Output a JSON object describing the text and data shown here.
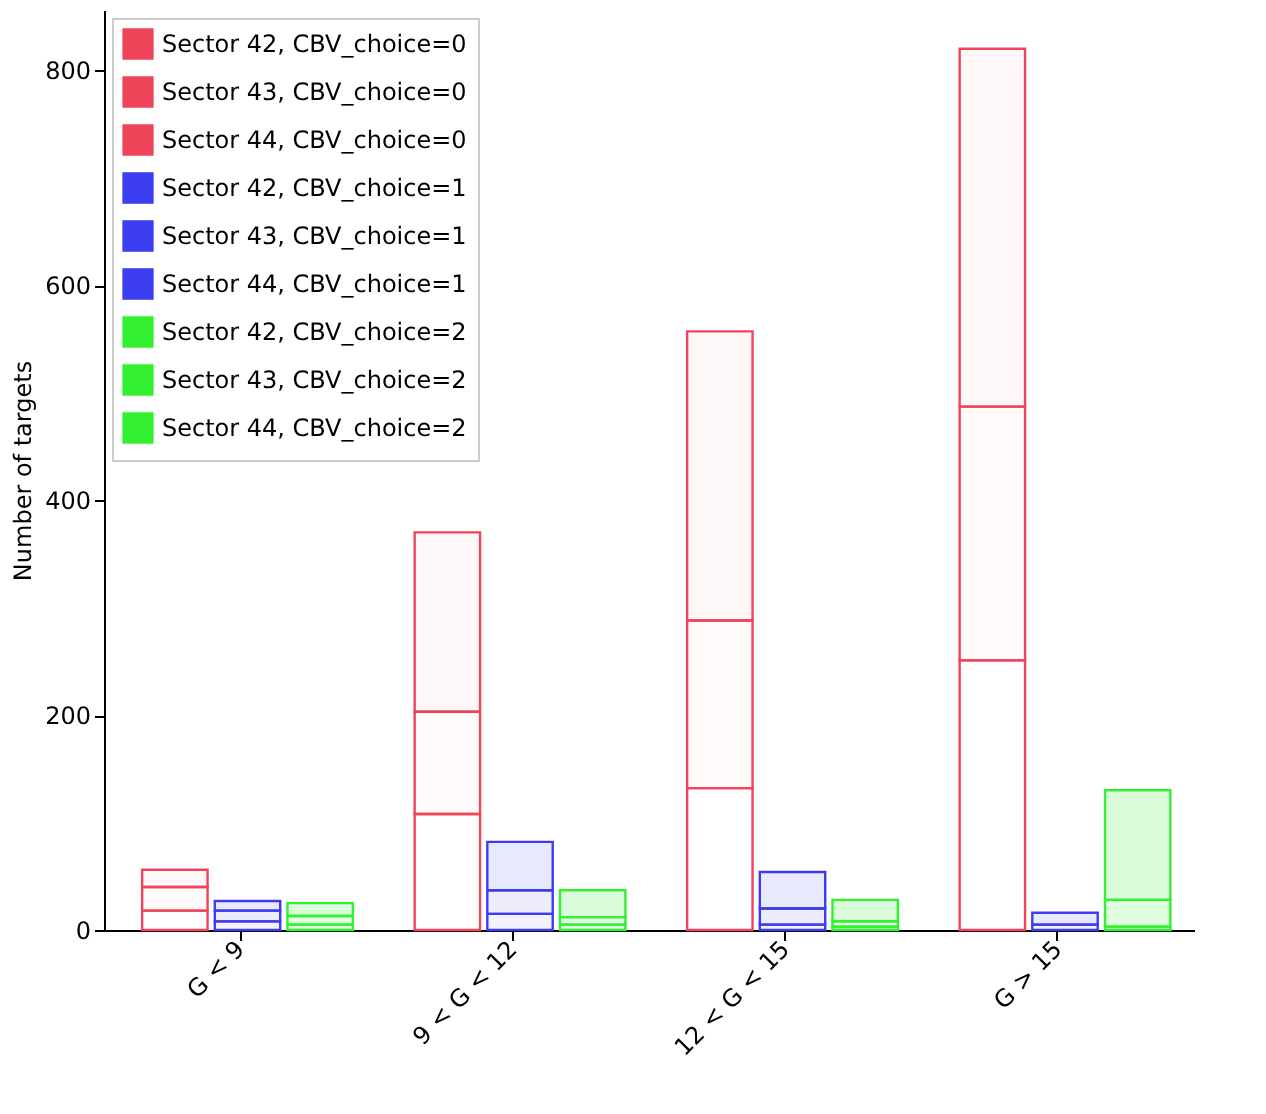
{
  "chart_data": {
    "type": "bar",
    "ylabel": "Number of targets",
    "categories": [
      "G < 9",
      "9 < G < 12",
      "12 < G < 15",
      "G > 15"
    ],
    "series": [
      {
        "name": "Sector 42, CBV_choice=0",
        "color": "#f0445a",
        "values": [
          18,
          108,
          132,
          251
        ],
        "base": [
          0,
          0,
          0,
          0
        ]
      },
      {
        "name": "Sector 43, CBV_choice=0",
        "color": "#f0445a",
        "values": [
          22,
          95,
          156,
          236
        ],
        "base": [
          18,
          108,
          132,
          251
        ]
      },
      {
        "name": "Sector 44, CBV_choice=0",
        "color": "#f0445a",
        "values": [
          16,
          167,
          269,
          333
        ],
        "base": [
          40,
          203,
          288,
          487
        ]
      },
      {
        "name": "Sector 42, CBV_choice=1",
        "color": "#3c3cf0",
        "values": [
          8,
          15,
          5,
          5
        ],
        "base": [
          0,
          0,
          0,
          0
        ]
      },
      {
        "name": "Sector 43, CBV_choice=1",
        "color": "#3c3cf0",
        "values": [
          10,
          22,
          15,
          null
        ],
        "base": [
          8,
          15,
          5,
          null
        ]
      },
      {
        "name": "Sector 44, CBV_choice=1",
        "color": "#3c3cf0",
        "values": [
          9,
          45,
          34,
          11
        ],
        "base": [
          18,
          37,
          20,
          5
        ]
      },
      {
        "name": "Sector 42, CBV_choice=2",
        "color": "#33f033",
        "values": [
          5,
          5,
          3,
          3
        ],
        "base": [
          0,
          0,
          0,
          0
        ]
      },
      {
        "name": "Sector 43, CBV_choice=2",
        "color": "#33f033",
        "values": [
          8,
          7,
          5,
          25
        ],
        "base": [
          5,
          5,
          3,
          3
        ]
      },
      {
        "name": "Sector 44, CBV_choice=2",
        "color": "#33f033",
        "values": [
          12,
          25,
          20,
          102
        ],
        "base": [
          13,
          12,
          8,
          28
        ]
      }
    ],
    "ylim": [
      0,
      856
    ],
    "yticks": [
      0,
      200,
      400,
      600,
      800
    ],
    "grid": false,
    "legend": "top left"
  }
}
